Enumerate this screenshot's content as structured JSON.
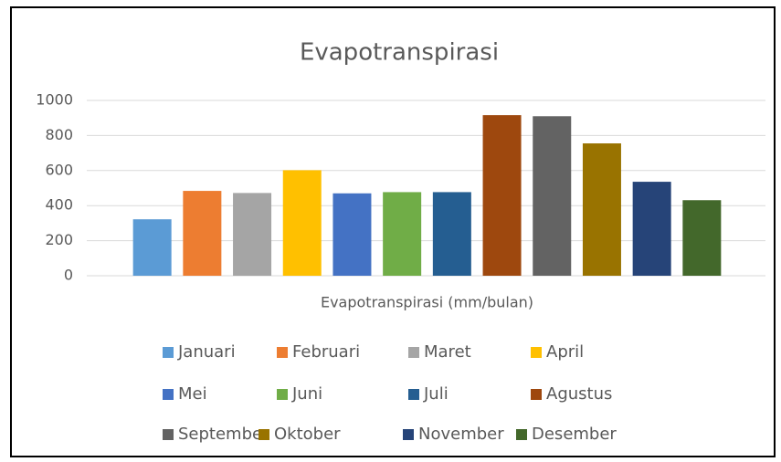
{
  "chart_data": {
    "type": "bar",
    "title": "Evapotranspirasi",
    "categories": [
      "Evapotranspirasi (mm/bulan)"
    ],
    "series": [
      {
        "name": "Januari",
        "color": "#5b9bd5",
        "values": [
          322
        ]
      },
      {
        "name": "Februari",
        "color": "#ed7d31",
        "values": [
          484
        ]
      },
      {
        "name": "Maret",
        "color": "#a5a5a5",
        "values": [
          472
        ]
      },
      {
        "name": "April",
        "color": "#ffc000",
        "values": [
          602
        ]
      },
      {
        "name": "Mei",
        "color": "#4472c4",
        "values": [
          470
        ]
      },
      {
        "name": "Juni",
        "color": "#70ad47",
        "values": [
          477
        ]
      },
      {
        "name": "Juli",
        "color": "#255e91",
        "values": [
          477
        ]
      },
      {
        "name": "Agustus",
        "color": "#9e480e",
        "values": [
          916
        ]
      },
      {
        "name": "September",
        "color": "#636363",
        "values": [
          910
        ]
      },
      {
        "name": "Oktober",
        "color": "#997300",
        "values": [
          755
        ]
      },
      {
        "name": "November",
        "color": "#264478",
        "values": [
          536
        ]
      },
      {
        "name": "Desember",
        "color": "#43682b",
        "values": [
          431
        ]
      }
    ],
    "ylim": [
      0,
      1000
    ],
    "yticks": [
      0,
      200,
      400,
      600,
      800,
      1000
    ],
    "grid": true,
    "legend": "bottom"
  }
}
